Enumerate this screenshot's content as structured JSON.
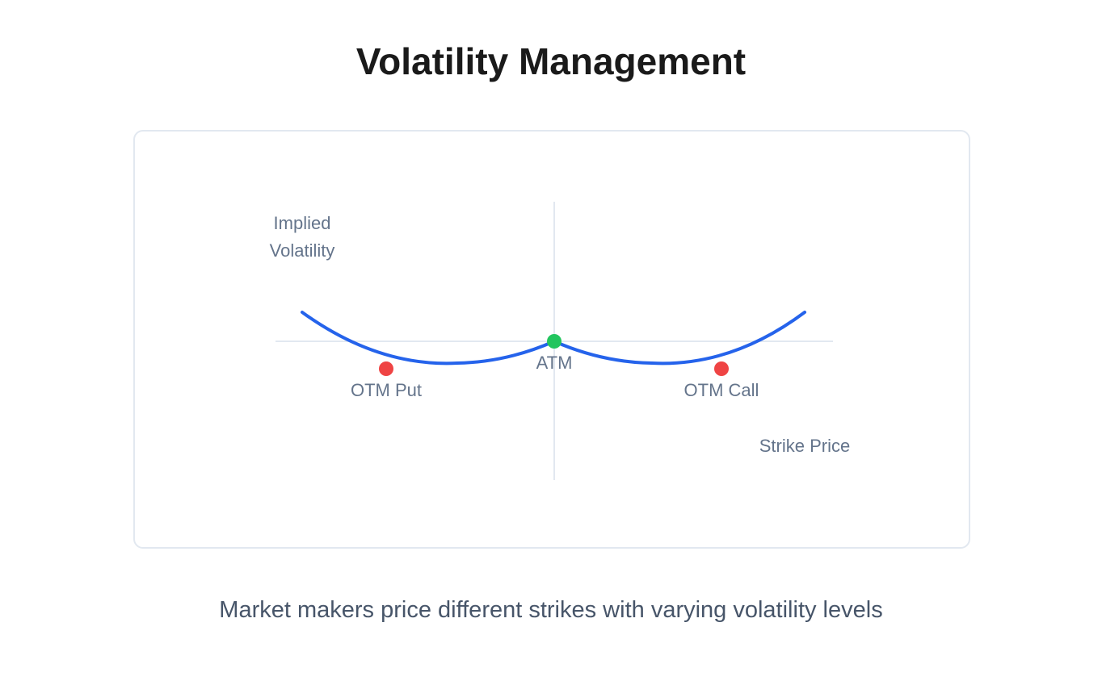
{
  "title": "Volatility Management",
  "diagram": {
    "y_axis_label_line1": "Implied",
    "y_axis_label_line2": "Volatility",
    "x_axis_label": "Strike Price",
    "points": {
      "otm_put": "OTM Put",
      "atm": "ATM",
      "otm_call": "OTM Call"
    },
    "colors": {
      "curve": "#2563eb",
      "atm_point": "#22c55e",
      "otm_point": "#ef4444",
      "axis": "#e2e8f0",
      "label": "#64748b"
    }
  },
  "caption": "Market makers price different strikes with varying volatility levels"
}
